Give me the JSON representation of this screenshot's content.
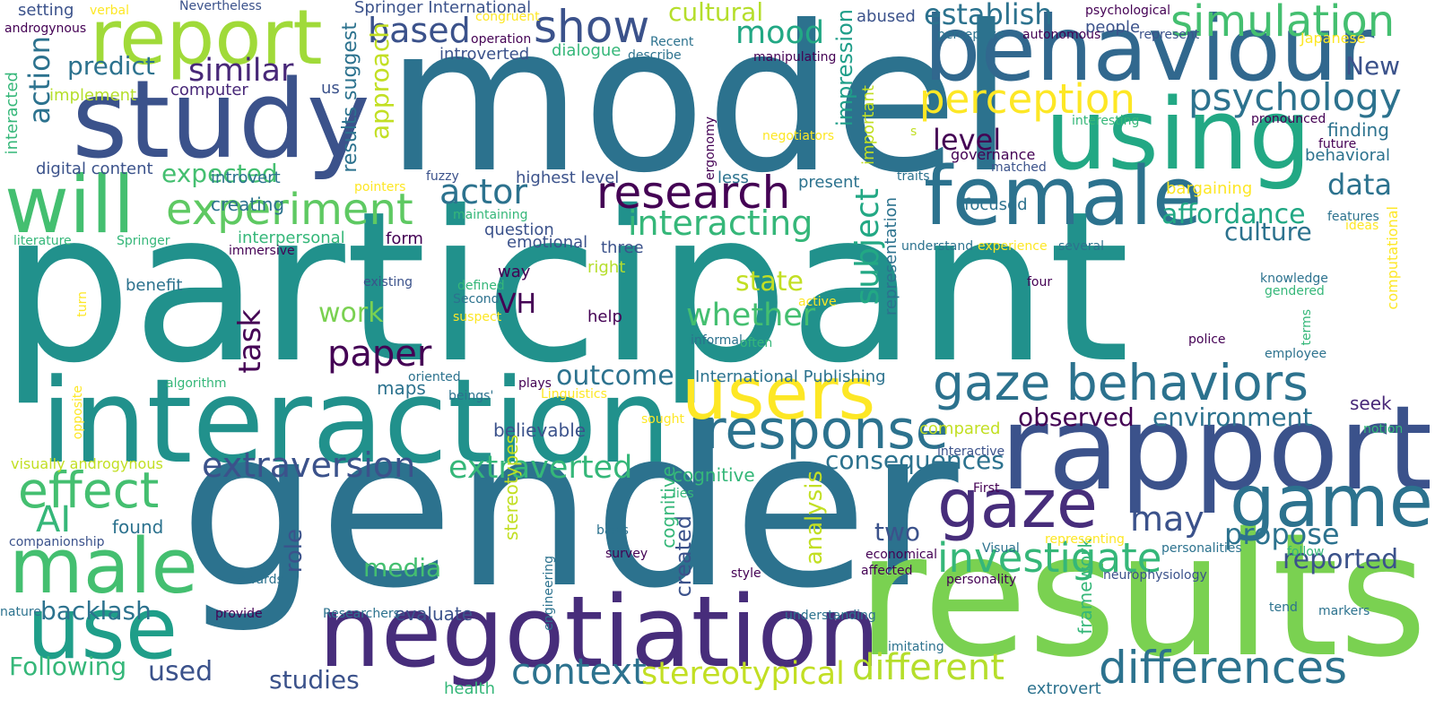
{
  "palette": [
    "#440154",
    "#482878",
    "#3e4989",
    "#31688e",
    "#26828e",
    "#1f9e89",
    "#35b779",
    "#6ece58",
    "#b5de2b",
    "#fde725"
  ],
  "words": [
    {
      "text": "participant",
      "color": "#21918c"
    },
    {
      "text": "gender",
      "color": "#2c728e"
    },
    {
      "text": "model",
      "color": "#2c728e"
    },
    {
      "text": "results",
      "color": "#7ad151"
    },
    {
      "text": "interaction",
      "color": "#21918c"
    },
    {
      "text": "negotiation",
      "color": "#472d7b"
    },
    {
      "text": "study",
      "color": "#3b528b"
    },
    {
      "text": "rapport",
      "color": "#3b528b"
    },
    {
      "text": "using",
      "color": "#22a884"
    },
    {
      "text": "behaviour",
      "color": "#31688e"
    },
    {
      "text": "report",
      "color": "#a0da39"
    },
    {
      "text": "female",
      "color": "#2c728e"
    },
    {
      "text": "users",
      "color": "#fde725"
    },
    {
      "text": "use",
      "color": "#1f9e89"
    },
    {
      "text": "male",
      "color": "#44bf70"
    },
    {
      "text": "will",
      "color": "#44bf70"
    },
    {
      "text": "gaze",
      "color": "#472d7b"
    },
    {
      "text": "game",
      "color": "#2c728e"
    },
    {
      "text": "gaze behaviors",
      "color": "#2c728e"
    },
    {
      "text": "response",
      "color": "#2c728e"
    },
    {
      "text": "research",
      "color": "#440154"
    },
    {
      "text": "experiment",
      "color": "#5ec962"
    },
    {
      "text": "differences",
      "color": "#2c728e"
    },
    {
      "text": "simulation",
      "color": "#44bf70"
    },
    {
      "text": "effect",
      "color": "#44bf70"
    },
    {
      "text": "perception",
      "color": "#fde725"
    },
    {
      "text": "investigate",
      "color": "#35b779"
    },
    {
      "text": "psychology",
      "color": "#2c728e"
    },
    {
      "text": "show",
      "color": "#3b528b"
    },
    {
      "text": "context",
      "color": "#2c728e"
    },
    {
      "text": "different",
      "color": "#b5de2b"
    },
    {
      "text": "extraversion",
      "color": "#3b528b"
    },
    {
      "text": "interacting",
      "color": "#35b779"
    },
    {
      "text": "actor",
      "color": "#2c728e"
    },
    {
      "text": "whether",
      "color": "#44bf70"
    },
    {
      "text": "paper",
      "color": "#440154"
    },
    {
      "text": "extraverted",
      "color": "#35b779"
    },
    {
      "text": "stereotypical",
      "color": "#c2df23"
    },
    {
      "text": "AI",
      "color": "#35b779"
    },
    {
      "text": "based",
      "color": "#3b528b"
    },
    {
      "text": "mood",
      "color": "#22a884"
    },
    {
      "text": "similar",
      "color": "#482878"
    },
    {
      "text": "affordance",
      "color": "#22a884"
    },
    {
      "text": "may",
      "color": "#3b528b"
    },
    {
      "text": "propose",
      "color": "#2c728e"
    },
    {
      "text": "reported",
      "color": "#3b528b"
    },
    {
      "text": "data",
      "color": "#2c728e"
    },
    {
      "text": "culture",
      "color": "#2c728e"
    },
    {
      "text": "establish",
      "color": "#2c728e"
    },
    {
      "text": "consequences",
      "color": "#2c728e"
    },
    {
      "text": "outcome",
      "color": "#2c728e"
    },
    {
      "text": "observed",
      "color": "#440154"
    },
    {
      "text": "environment",
      "color": "#2c728e"
    },
    {
      "text": "subject",
      "color": "#22a884"
    },
    {
      "text": "state",
      "color": "#c2df23"
    },
    {
      "text": "work",
      "color": "#7ad151"
    },
    {
      "text": "action",
      "color": "#2c728e"
    },
    {
      "text": "predict",
      "color": "#2c728e"
    },
    {
      "text": "expected",
      "color": "#44bf70"
    },
    {
      "text": "level",
      "color": "#440154"
    },
    {
      "text": "VH",
      "color": "#440154"
    },
    {
      "text": "cultural",
      "color": "#b5de2b"
    },
    {
      "text": "New",
      "color": "#3b528b"
    },
    {
      "text": "task",
      "color": "#440154"
    },
    {
      "text": "two",
      "color": "#3b528b"
    },
    {
      "text": "media",
      "color": "#44bf70"
    },
    {
      "text": "backlash",
      "color": "#2c728e"
    },
    {
      "text": "Following",
      "color": "#35b779"
    },
    {
      "text": "used",
      "color": "#3b528b"
    },
    {
      "text": "studies",
      "color": "#3b528b"
    },
    {
      "text": "approach",
      "color": "#c2df23"
    },
    {
      "text": "impression",
      "color": "#1f9e89"
    },
    {
      "text": "analysis",
      "color": "#c2df23"
    },
    {
      "text": "role",
      "color": "#3b528b"
    },
    {
      "text": "created",
      "color": "#3b528b"
    },
    {
      "text": "results suggest",
      "color": "#2c728e"
    },
    {
      "text": "finding",
      "color": "#2c728e"
    },
    {
      "text": "behavioral",
      "color": "#2c728e"
    },
    {
      "text": "seek",
      "color": "#482878"
    },
    {
      "text": "evaluate",
      "color": "#3b528b"
    },
    {
      "text": "found",
      "color": "#2c728e"
    },
    {
      "text": "framework",
      "color": "#35b779"
    },
    {
      "text": "health",
      "color": "#35b779"
    },
    {
      "text": "maps",
      "color": "#2c728e"
    },
    {
      "text": "cognitive",
      "color": "#35b779"
    },
    {
      "text": "cognitive",
      "color": "#35b779"
    },
    {
      "text": "creating",
      "color": "#2c728e"
    },
    {
      "text": "extrovert",
      "color": "#2c728e"
    },
    {
      "text": "believable",
      "color": "#3b528b"
    },
    {
      "text": "stereotypes",
      "color": "#c2df23"
    },
    {
      "text": "focused",
      "color": "#2c728e"
    },
    {
      "text": "present",
      "color": "#2c728e"
    },
    {
      "text": "governance",
      "color": "#440154"
    },
    {
      "text": "matched",
      "color": "#3b528b"
    },
    {
      "text": "people",
      "color": "#3b528b"
    },
    {
      "text": "representation",
      "color": "#2c728e"
    },
    {
      "text": "emotional",
      "color": "#3b528b"
    },
    {
      "text": "question",
      "color": "#3b528b"
    },
    {
      "text": "form",
      "color": "#440154"
    },
    {
      "text": "interpersonal",
      "color": "#35b779"
    },
    {
      "text": "introvert",
      "color": "#2c728e"
    },
    {
      "text": "digital content",
      "color": "#3b528b"
    },
    {
      "text": "three",
      "color": "#3b528b"
    },
    {
      "text": "way",
      "color": "#440154"
    },
    {
      "text": "right",
      "color": "#b5de2b"
    },
    {
      "text": "help",
      "color": "#440154"
    },
    {
      "text": "less",
      "color": "#2c728e"
    },
    {
      "text": "benefit",
      "color": "#2c728e"
    },
    {
      "text": "dialogue",
      "color": "#35b779"
    },
    {
      "text": "highest level",
      "color": "#3b528b"
    },
    {
      "text": "computer",
      "color": "#482878"
    },
    {
      "text": "implement",
      "color": "#b5de2b"
    },
    {
      "text": "introverted",
      "color": "#3b528b"
    },
    {
      "text": "compared",
      "color": "#c2df23"
    },
    {
      "text": "bargaining",
      "color": "#fde725"
    },
    {
      "text": "abused",
      "color": "#3b528b"
    },
    {
      "text": "important",
      "color": "#c2df23"
    },
    {
      "text": "setting",
      "color": "#3b528b"
    },
    {
      "text": "Springer International",
      "color": "#3b528b"
    },
    {
      "text": "International Publishing",
      "color": "#2c728e"
    },
    {
      "text": "visually androgynous",
      "color": "#c2df23"
    },
    {
      "text": "us",
      "color": "#3b528b"
    },
    {
      "text": "interacted",
      "color": "#35b779"
    },
    {
      "text": "Japanese",
      "color": "#fde725"
    },
    {
      "text": "computational",
      "color": "#fde725"
    },
    {
      "text": "s",
      "color": "#c2df23"
    },
    {
      "text": "verbal",
      "color": "#fde725"
    },
    {
      "text": "Nevertheless",
      "color": "#3b528b"
    },
    {
      "text": "congruent",
      "color": "#fde725"
    },
    {
      "text": "operation",
      "color": "#440154"
    },
    {
      "text": "Recent",
      "color": "#2c728e"
    },
    {
      "text": "perceptive",
      "color": "#2c728e"
    },
    {
      "text": "autonomous",
      "color": "#440154"
    },
    {
      "text": "represent",
      "color": "#3b528b"
    },
    {
      "text": "psychological",
      "color": "#440154"
    },
    {
      "text": "androgynous",
      "color": "#440154"
    },
    {
      "text": "describe",
      "color": "#2c728e"
    },
    {
      "text": "manipulating",
      "color": "#440154"
    },
    {
      "text": "interesting",
      "color": "#35b779"
    },
    {
      "text": "pronounced",
      "color": "#440154"
    },
    {
      "text": "future",
      "color": "#440154"
    },
    {
      "text": "negotiators",
      "color": "#fde725"
    },
    {
      "text": "ergonomy",
      "color": "#440154"
    },
    {
      "text": "fuzzy",
      "color": "#3b528b"
    },
    {
      "text": "traits",
      "color": "#2c728e"
    },
    {
      "text": "pointers",
      "color": "#fde725"
    },
    {
      "text": "maintaining",
      "color": "#35b779"
    },
    {
      "text": "literature",
      "color": "#35b779"
    },
    {
      "text": "Springer",
      "color": "#35b779"
    },
    {
      "text": "immersive",
      "color": "#440154"
    },
    {
      "text": "understand",
      "color": "#2c728e"
    },
    {
      "text": "experience",
      "color": "#fde725"
    },
    {
      "text": "several",
      "color": "#2c728e"
    },
    {
      "text": "features",
      "color": "#2c728e"
    },
    {
      "text": "ideas",
      "color": "#fde725"
    },
    {
      "text": "existing",
      "color": "#3b528b"
    },
    {
      "text": "defined",
      "color": "#35b779"
    },
    {
      "text": "Second",
      "color": "#2c728e"
    },
    {
      "text": "suspect",
      "color": "#fde725"
    },
    {
      "text": "active",
      "color": "#fde725"
    },
    {
      "text": "informal",
      "color": "#2c728e"
    },
    {
      "text": "often",
      "color": "#35b779"
    },
    {
      "text": "four",
      "color": "#440154"
    },
    {
      "text": "knowledge",
      "color": "#2c728e"
    },
    {
      "text": "gendered",
      "color": "#35b779"
    },
    {
      "text": "terms",
      "color": "#35b779"
    },
    {
      "text": "police",
      "color": "#440154"
    },
    {
      "text": "employee",
      "color": "#2c728e"
    },
    {
      "text": "turn",
      "color": "#fde725"
    },
    {
      "text": "oriented",
      "color": "#2c728e"
    },
    {
      "text": "algorithm",
      "color": "#35b779"
    },
    {
      "text": "plays",
      "color": "#440154"
    },
    {
      "text": "Linguistics",
      "color": "#fde725"
    },
    {
      "text": "beings'",
      "color": "#2c728e"
    },
    {
      "text": "opposite",
      "color": "#fde725"
    },
    {
      "text": "sought",
      "color": "#fde725"
    },
    {
      "text": "lies",
      "color": "#35b779"
    },
    {
      "text": "interactive",
      "color": "#3b528b"
    },
    {
      "text": "First",
      "color": "#440154"
    },
    {
      "text": "notion",
      "color": "#35b779"
    },
    {
      "text": "companionship",
      "color": "#3b528b"
    },
    {
      "text": "basis",
      "color": "#2c728e"
    },
    {
      "text": "survey",
      "color": "#440154"
    },
    {
      "text": "engineering",
      "color": "#2c728e"
    },
    {
      "text": "representing",
      "color": "#fde725"
    },
    {
      "text": "personalities",
      "color": "#2c728e"
    },
    {
      "text": "Visual",
      "color": "#2c728e"
    },
    {
      "text": "economical",
      "color": "#440154"
    },
    {
      "text": "follow",
      "color": "#35b779"
    },
    {
      "text": "towards",
      "color": "#2c728e"
    },
    {
      "text": "style",
      "color": "#440154"
    },
    {
      "text": "affected",
      "color": "#440154"
    },
    {
      "text": "personality",
      "color": "#440154"
    },
    {
      "text": "neurophysiology",
      "color": "#3b528b"
    },
    {
      "text": "nature",
      "color": "#2c728e"
    },
    {
      "text": "provide",
      "color": "#440154"
    },
    {
      "text": "Researchers",
      "color": "#2c728e"
    },
    {
      "text": "understanding",
      "color": "#2c728e"
    },
    {
      "text": "tend",
      "color": "#2c728e"
    },
    {
      "text": "markers",
      "color": "#2c728e"
    },
    {
      "text": "imitating",
      "color": "#2c728e"
    }
  ]
}
